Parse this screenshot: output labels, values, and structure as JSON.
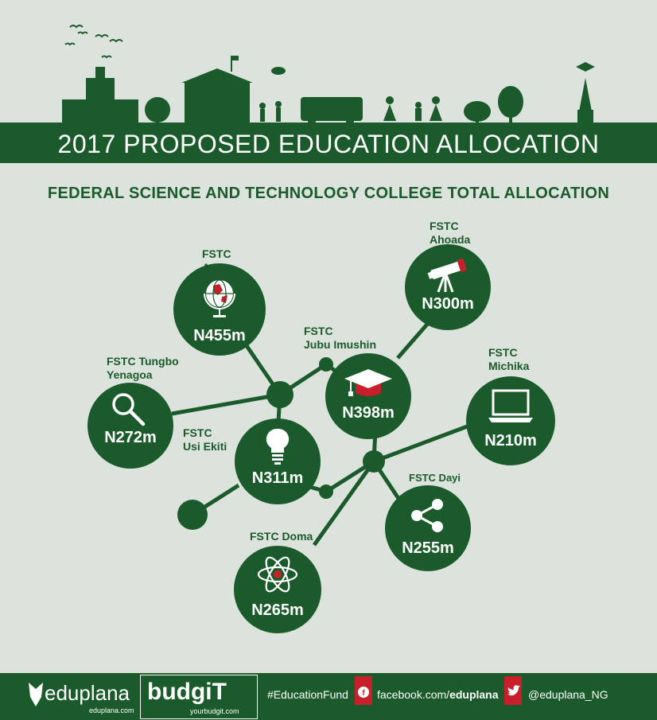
{
  "header": {
    "title": "2017 PROPOSED EDUCATION  ALLOCATION",
    "subtitle": "FEDERAL SCIENCE AND TECHNOLOGY COLLEGE TOTAL ALLOCATION"
  },
  "colleges": [
    {
      "id": "awka",
      "name_line1": "FSTC",
      "name_line2": "Awka",
      "amount": "N455m",
      "icon": "globe-icon"
    },
    {
      "id": "ahoada",
      "name_line1": "FSTC",
      "name_line2": "Ahoada",
      "amount": "N300m",
      "icon": "telescope-icon"
    },
    {
      "id": "jubu",
      "name_line1": "FSTC",
      "name_line2": "Jubu Imushin",
      "amount": "N398m",
      "icon": "graduation-cap-icon"
    },
    {
      "id": "michika",
      "name_line1": "FSTC",
      "name_line2": "Michika",
      "amount": "N210m",
      "icon": "laptop-icon"
    },
    {
      "id": "tungbo",
      "name_line1": "FSTC Tungbo",
      "name_line2": "Yenagoa",
      "amount": "N272m",
      "icon": "magnifier-icon"
    },
    {
      "id": "usi",
      "name_line1": "FSTC",
      "name_line2": "Usi Ekiti",
      "amount": "N311m",
      "icon": "lightbulb-icon"
    },
    {
      "id": "dayi",
      "name_line1": "FSTC Dayi",
      "name_line2": "",
      "amount": "N255m",
      "icon": "share-icon"
    },
    {
      "id": "doma",
      "name_line1": "FSTC Doma",
      "name_line2": "",
      "amount": "N265m",
      "icon": "atom-icon"
    }
  ],
  "footer": {
    "eduplana_brand": "eduplana",
    "eduplana_site": "eduplana.com",
    "budgit_brand": "budgiT",
    "budgit_site": "yourbudgit.com",
    "hashtag": "#EducationFund",
    "facebook_prefix": "facebook.com/",
    "facebook_handle": "eduplana",
    "twitter_handle": "@eduplana_NG"
  },
  "colors": {
    "primary": "#1b5a2a",
    "accent": "#c8202a",
    "background": "#dbe3dc"
  }
}
